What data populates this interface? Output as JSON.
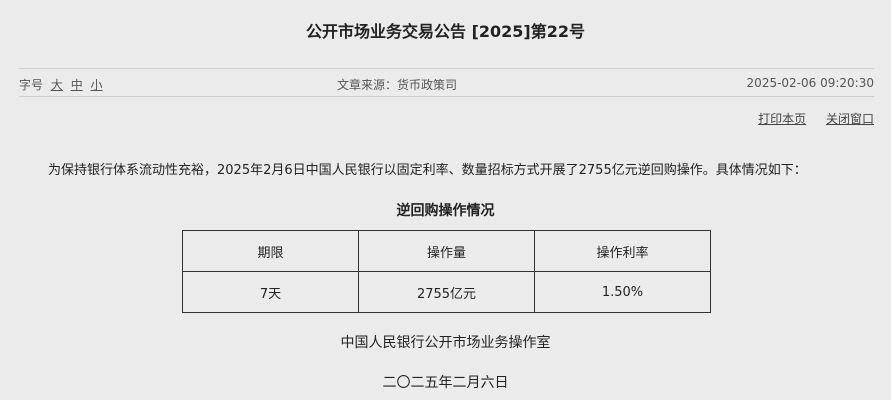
{
  "title": "公开市场业务交易公告 [2025]第22号",
  "meta": {
    "font_label": "字号",
    "font_large": "大",
    "font_medium": "中",
    "font_small": "小",
    "source": "文章来源：货币政策司",
    "datetime": "2025-02-06 09:20:30"
  },
  "links": {
    "print": "打印本页",
    "close": "关闭窗口"
  },
  "paragraph": "为保持银行体系流动性充裕，2025年2月6日中国人民银行以固定利率、数量招标方式开展了2755亿元逆回购操作。具体情况如下：",
  "table": {
    "caption": "逆回购操作情况",
    "headers": [
      "期限",
      "操作量",
      "操作利率"
    ],
    "rows": [
      [
        "7天",
        "2755亿元",
        "1.50%"
      ]
    ]
  },
  "signature": {
    "org": "中国人民银行公开市场业务操作室",
    "date": "二〇二五年二月六日"
  }
}
